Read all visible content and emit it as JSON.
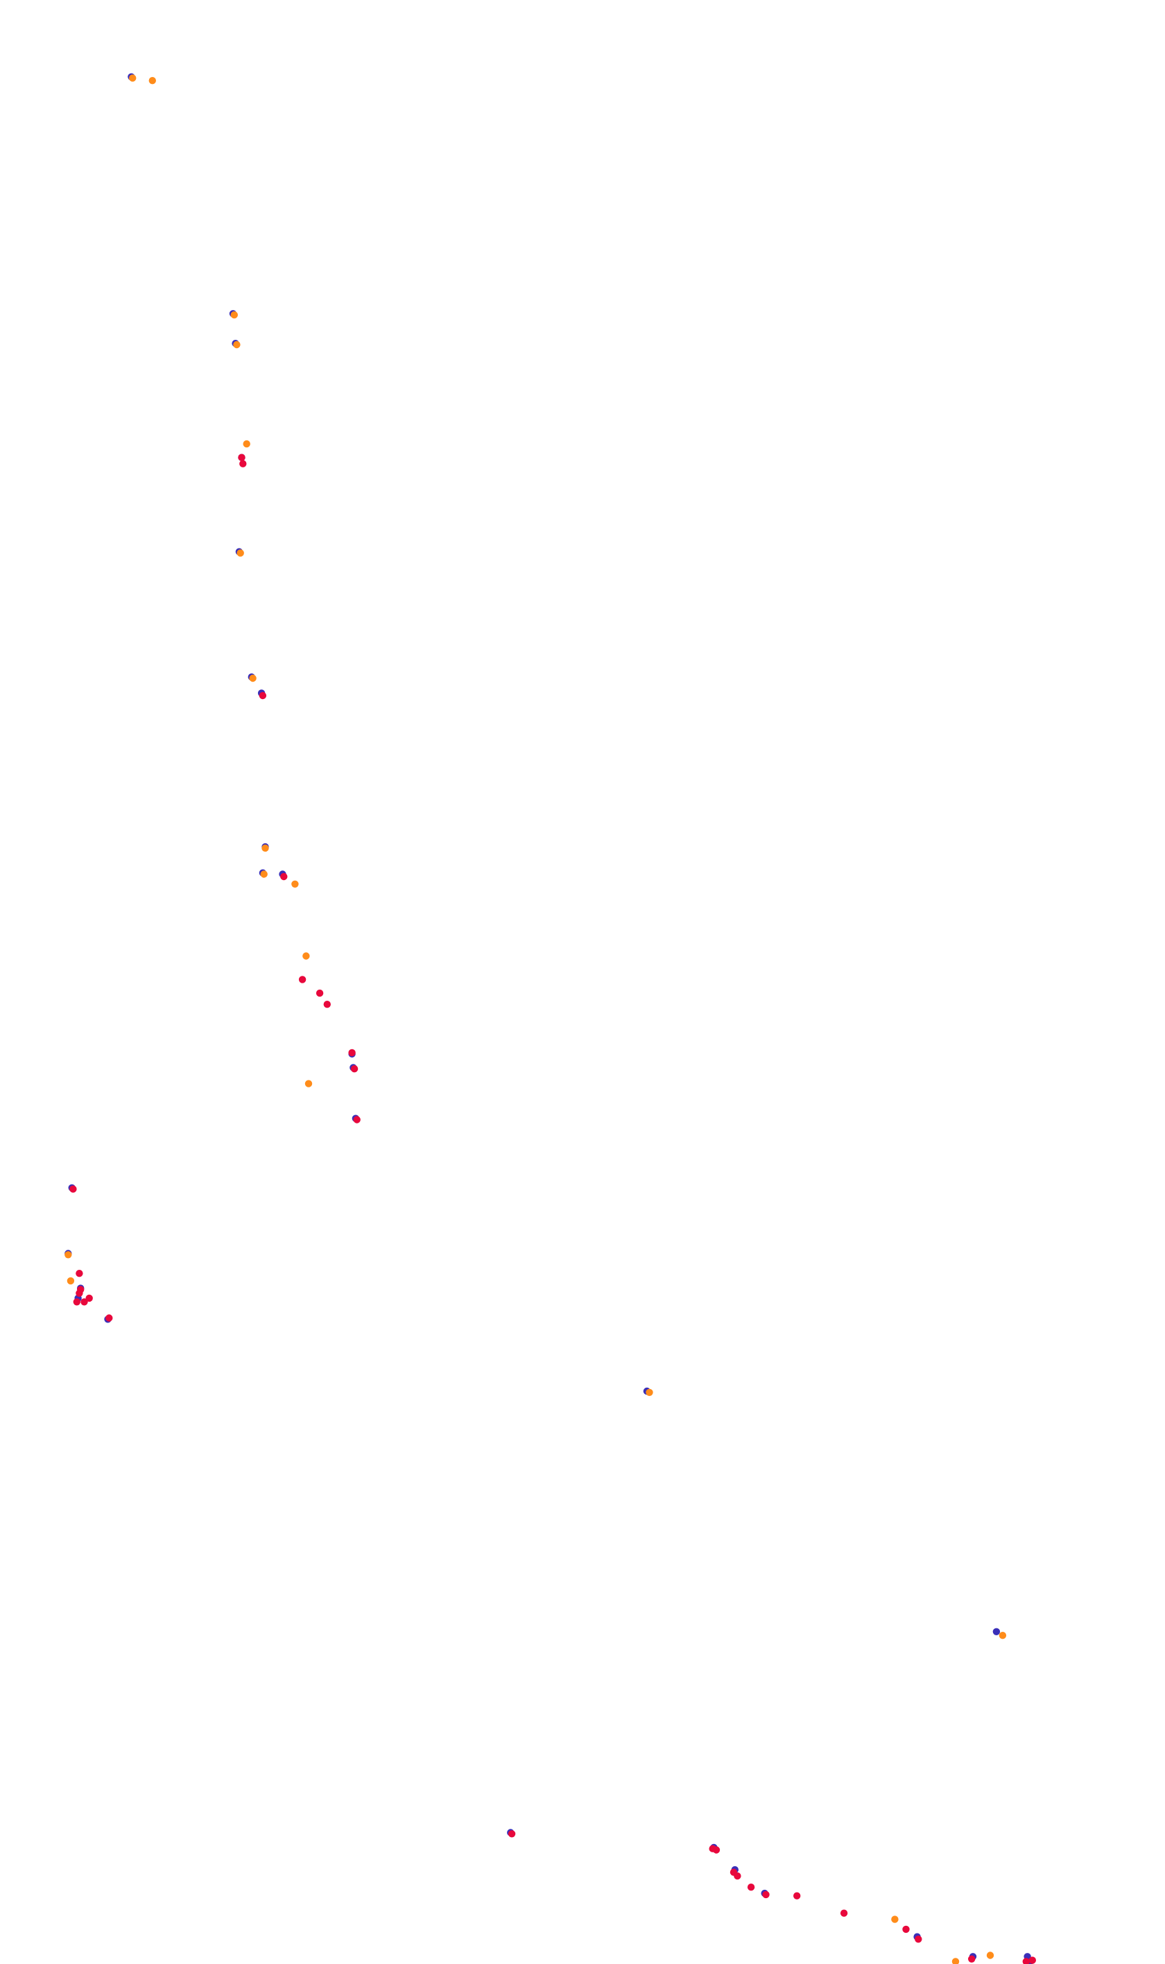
{
  "chart_data": {
    "type": "scatter",
    "title": "",
    "xlabel": "",
    "ylabel": "",
    "grid": false,
    "legend": "none",
    "axes_visible": false,
    "xlim": [
      0,
      940
    ],
    "ylim": [
      1584,
      0
    ],
    "colors": {
      "background": "#ffffff",
      "red": "#e8083c",
      "orange": "#ff8c1a",
      "blue": "#3a2fb8"
    },
    "series": [
      {
        "color": "#3a2fb8",
        "points": [
          [
            412,
            106
          ],
          [
            576,
            94
          ],
          [
            593,
            76
          ],
          [
            617,
            57
          ],
          [
            740,
            22
          ],
          [
            785,
            6
          ],
          [
            829,
            6
          ],
          [
            831,
            2
          ],
          [
            804,
            268
          ],
          [
            522,
            462
          ],
          [
            87,
            520
          ],
          [
            63,
            537
          ],
          [
            65,
            545
          ],
          [
            55,
            573
          ],
          [
            58,
            626
          ],
          [
            287,
            682
          ],
          [
            285,
            723
          ],
          [
            284,
            734
          ],
          [
            228,
            879
          ],
          [
            212,
            880
          ],
          [
            214,
            901
          ],
          [
            211,
            1025
          ],
          [
            203,
            1038
          ],
          [
            193,
            1139
          ],
          [
            195,
            1215
          ],
          [
            190,
            1307
          ],
          [
            188,
            1331
          ],
          [
            106,
            1522
          ]
        ]
      },
      {
        "color": "#ff8c1a",
        "points": [
          [
            771,
            2
          ],
          [
            799,
            7
          ],
          [
            722,
            36
          ],
          [
            809,
            265
          ],
          [
            524,
            461
          ],
          [
            57,
            551
          ],
          [
            55,
            572
          ],
          [
            249,
            710
          ],
          [
            247,
            813
          ],
          [
            238,
            871
          ],
          [
            213,
            879
          ],
          [
            214,
            900
          ],
          [
            204,
            1037
          ],
          [
            194,
            1138
          ],
          [
            199,
            1226
          ],
          [
            191,
            1306
          ],
          [
            189,
            1330
          ],
          [
            107,
            1521
          ],
          [
            123,
            1519
          ]
        ]
      },
      {
        "color": "#e8083c",
        "points": [
          [
            413,
            105
          ],
          [
            575,
            93
          ],
          [
            578,
            92
          ],
          [
            592,
            74
          ],
          [
            595,
            71
          ],
          [
            606,
            62
          ],
          [
            618,
            56
          ],
          [
            643,
            55
          ],
          [
            681,
            41
          ],
          [
            731,
            28
          ],
          [
            741,
            20
          ],
          [
            784,
            4
          ],
          [
            828,
            2
          ],
          [
            833,
            3
          ],
          [
            88,
            521
          ],
          [
            62,
            534
          ],
          [
            68,
            534
          ],
          [
            72,
            537
          ],
          [
            64,
            541
          ],
          [
            65,
            544
          ],
          [
            64,
            557
          ],
          [
            59,
            625
          ],
          [
            288,
            681
          ],
          [
            286,
            722
          ],
          [
            284,
            735
          ],
          [
            264,
            774
          ],
          [
            258,
            783
          ],
          [
            244,
            794
          ],
          [
            229,
            877
          ],
          [
            212,
            1023
          ],
          [
            196,
            1210
          ],
          [
            195,
            1215
          ]
        ]
      }
    ]
  }
}
